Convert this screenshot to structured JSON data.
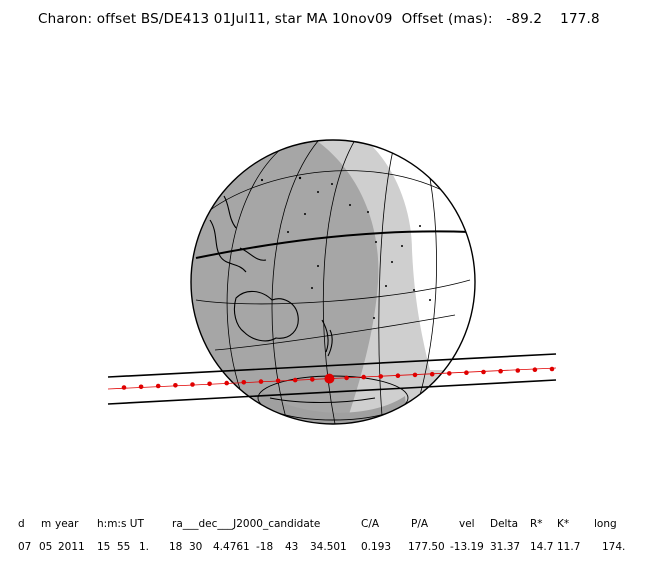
{
  "title": {
    "object": "Charon: offset BS/DE413 01Jul11, star MA 10nov09",
    "offset_label": "Offset (mas):",
    "offset_x": "-89.2",
    "offset_y": "177.8"
  },
  "table": {
    "headers": [
      {
        "key": "d",
        "text": "d"
      },
      {
        "key": "m",
        "text": "m"
      },
      {
        "key": "year",
        "text": "year"
      },
      {
        "key": "hms",
        "text": "h:m:s UT"
      },
      {
        "key": "radec",
        "text": "ra___dec___J2000_candidate"
      },
      {
        "key": "ca",
        "text": "C/A"
      },
      {
        "key": "pa",
        "text": "P/A"
      },
      {
        "key": "vel",
        "text": "vel"
      },
      {
        "key": "delta",
        "text": "Delta"
      },
      {
        "key": "rstar",
        "text": "R*"
      },
      {
        "key": "kstar",
        "text": "K*"
      },
      {
        "key": "long",
        "text": "long"
      }
    ],
    "row": {
      "d": "07",
      "m": "05",
      "year": "2011",
      "h": "15",
      "min": "55",
      "s": "1.",
      "ra_h": "18",
      "ra_m": "30",
      "ra_s": "4.4761",
      "dec_d": "-18",
      "dec_m": "43",
      "dec_s": "34.501",
      "ca": "0.193",
      "pa": "177.50",
      "vel": "-13.19",
      "delta": "31.37",
      "rstar": "14.7",
      "kstar": "11.7",
      "long": "174."
    }
  },
  "colors": {
    "night": "#a6a6a6",
    "twilight": "#cfcfcf",
    "day": "#ffffff",
    "track": "#e00000",
    "lines": "#000000"
  }
}
